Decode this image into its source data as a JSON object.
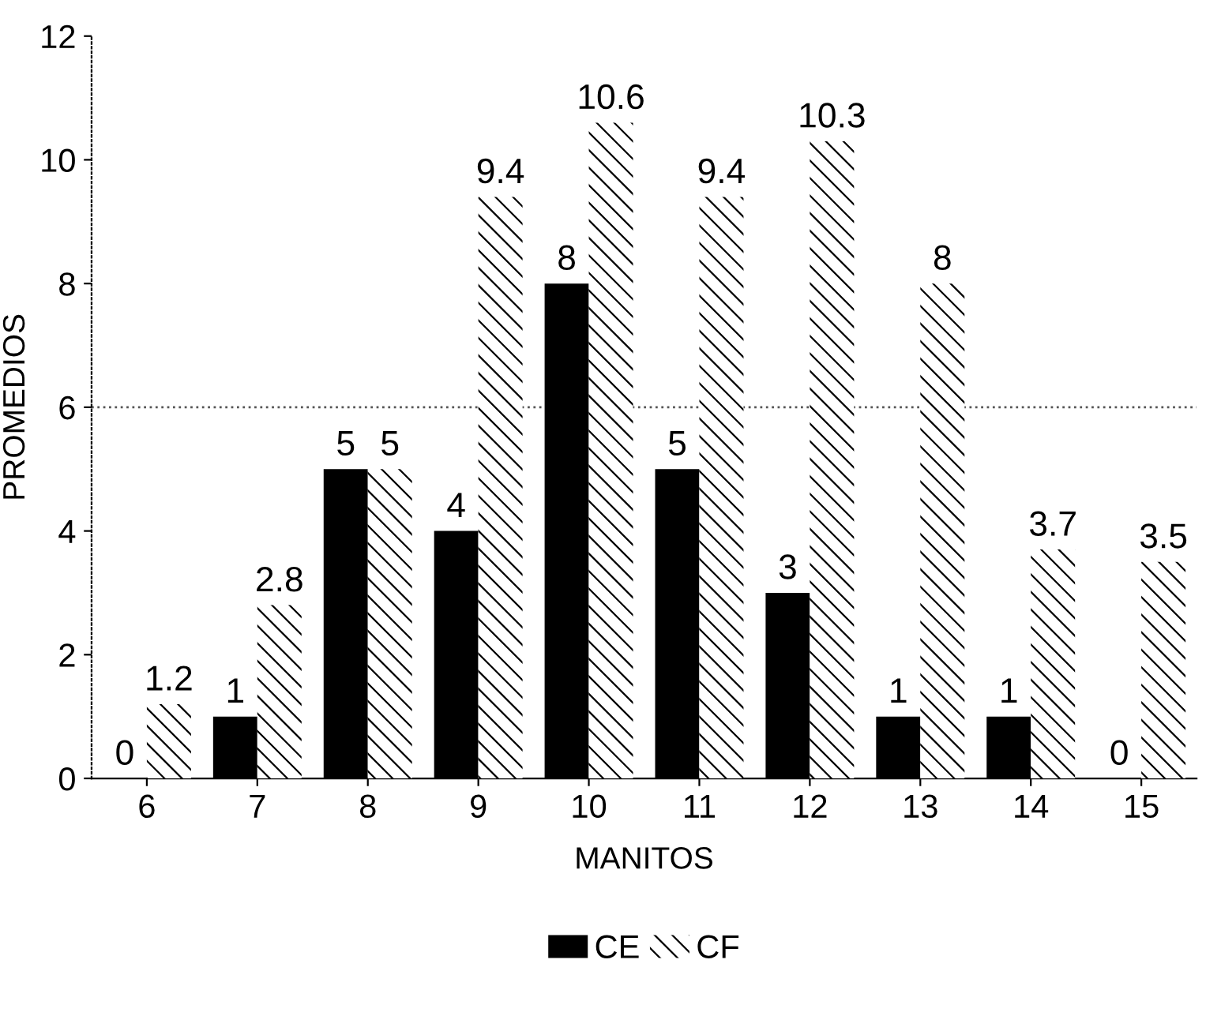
{
  "chart_data": {
    "type": "bar",
    "xlabel": "MANITOS",
    "ylabel": "PROMEDIOS",
    "categories": [
      "6",
      "7",
      "8",
      "9",
      "10",
      "11",
      "12",
      "13",
      "14",
      "15"
    ],
    "series": [
      {
        "name": "CE",
        "color": "#000000",
        "values": [
          0,
          1,
          5,
          4,
          8,
          5,
          3,
          1,
          1,
          0
        ]
      },
      {
        "name": "CF",
        "color": "#ffffff",
        "values": [
          1.2,
          2.8,
          5,
          9.4,
          10.6,
          9.4,
          10.3,
          8,
          3.7,
          3.5
        ]
      }
    ],
    "ylim": [
      0,
      12
    ],
    "yticks": [
      0,
      2,
      4,
      6,
      8,
      10,
      12
    ],
    "ref_lines": [
      {
        "axis": "y",
        "value": 6,
        "line_style": "dotted",
        "color": "#555555"
      }
    ],
    "data_labels": true,
    "grid": false,
    "legend": "bottom"
  }
}
